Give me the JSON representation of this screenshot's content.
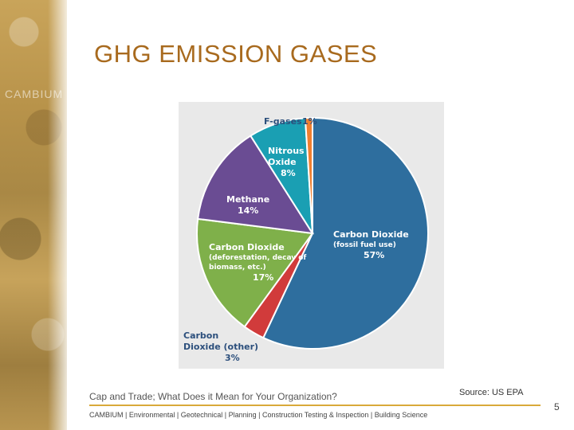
{
  "slide": {
    "title": "GHG EMISSION GASES",
    "footer_left": "Cap and Trade; What Does it Mean for Your Organization?",
    "source": "Source: US EPA",
    "bottom_line": "CAMBIUM  |  Environmental  | Geotechnical | Planning  | Construction Testing & Inspection | Building Science",
    "page_number": "5",
    "strip_word": "CAMBIUM"
  },
  "chart_data": {
    "type": "pie",
    "title": "",
    "start_angle_deg": 0,
    "slices": [
      {
        "label_lines": [
          "Carbon Dioxide",
          "(fossil fuel use)"
        ],
        "value_label": "57%",
        "value": 57,
        "color": "#2e6e9e"
      },
      {
        "label_lines": [
          "Carbon",
          "Dioxide (other)"
        ],
        "value_label": "3%",
        "value": 3,
        "color": "#d13b3b"
      },
      {
        "label_lines": [
          "Carbon Dioxide",
          "(deforestation, decay of",
          "biomass, etc.)"
        ],
        "value_label": "17%",
        "value": 17,
        "color": "#7fb04a"
      },
      {
        "label_lines": [
          "Methane"
        ],
        "value_label": "14%",
        "value": 14,
        "color": "#6a4c93"
      },
      {
        "label_lines": [
          "Nitrous",
          "Oxide"
        ],
        "value_label": "8%",
        "value": 8,
        "color": "#1a9fb3"
      },
      {
        "label_lines": [
          "F-gases"
        ],
        "value_label": "1%",
        "value": 1,
        "color": "#f07f30"
      }
    ]
  }
}
